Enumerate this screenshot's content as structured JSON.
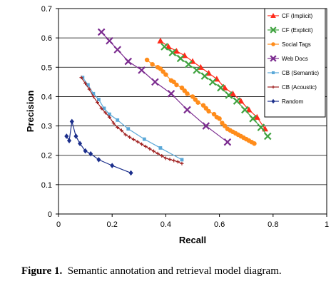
{
  "chart_data": {
    "type": "scatter",
    "xlabel": "Recall",
    "ylabel": "Precision",
    "xlim": [
      0,
      1
    ],
    "ylim": [
      0,
      0.7
    ],
    "x_ticks": [
      0,
      0.2,
      0.4,
      0.6,
      0.8,
      1
    ],
    "x_tick_labels": [
      "0",
      "0.2",
      "0.4",
      "0.6",
      "0.8",
      "1"
    ],
    "y_ticks": [
      0,
      0.1,
      0.2,
      0.3,
      0.4,
      0.5,
      0.6,
      0.7
    ],
    "y_tick_labels": [
      "0",
      "0.1",
      "0.2",
      "0.3",
      "0.4",
      "0.5",
      "0.6",
      "0.7"
    ],
    "grid": "horizontal",
    "legend_position": "top-right",
    "series": [
      {
        "name": "CF (Implicit)",
        "color": "#ff2a1a",
        "marker": "triangle",
        "x": [
          0.38,
          0.41,
          0.44,
          0.47,
          0.5,
          0.53,
          0.56,
          0.59,
          0.62,
          0.65,
          0.68,
          0.71,
          0.74,
          0.77
        ],
        "y": [
          0.59,
          0.57,
          0.555,
          0.54,
          0.52,
          0.5,
          0.48,
          0.46,
          0.43,
          0.41,
          0.385,
          0.355,
          0.33,
          0.29
        ]
      },
      {
        "name": "CF (Explicit)",
        "color": "#3fa23f",
        "marker": "x",
        "x": [
          0.395,
          0.425,
          0.455,
          0.485,
          0.515,
          0.545,
          0.575,
          0.605,
          0.635,
          0.665,
          0.695,
          0.725,
          0.755,
          0.78
        ],
        "y": [
          0.57,
          0.55,
          0.53,
          0.51,
          0.49,
          0.47,
          0.45,
          0.43,
          0.405,
          0.385,
          0.355,
          0.325,
          0.295,
          0.265
        ]
      },
      {
        "name": "Social Tags",
        "color": "#ff8c1a",
        "marker": "circle",
        "x": [
          0.33,
          0.35,
          0.37,
          0.38,
          0.39,
          0.4,
          0.42,
          0.43,
          0.44,
          0.46,
          0.47,
          0.48,
          0.5,
          0.51,
          0.52,
          0.54,
          0.55,
          0.56,
          0.58,
          0.59,
          0.6,
          0.61,
          0.62,
          0.63,
          0.64,
          0.65,
          0.66,
          0.67,
          0.68,
          0.69,
          0.7,
          0.71,
          0.72,
          0.73
        ],
        "y": [
          0.525,
          0.51,
          0.5,
          0.495,
          0.485,
          0.475,
          0.455,
          0.45,
          0.44,
          0.43,
          0.42,
          0.41,
          0.4,
          0.39,
          0.38,
          0.37,
          0.36,
          0.35,
          0.34,
          0.33,
          0.325,
          0.31,
          0.3,
          0.29,
          0.285,
          0.28,
          0.275,
          0.27,
          0.265,
          0.26,
          0.255,
          0.25,
          0.245,
          0.24
        ]
      },
      {
        "name": "Web Docs",
        "color": "#7b2b8f",
        "marker": "x",
        "x": [
          0.16,
          0.19,
          0.22,
          0.26,
          0.31,
          0.36,
          0.42,
          0.48,
          0.55,
          0.63
        ],
        "y": [
          0.62,
          0.59,
          0.56,
          0.52,
          0.49,
          0.45,
          0.41,
          0.355,
          0.3,
          0.245
        ]
      },
      {
        "name": "CB (Semantic)",
        "color": "#5aa8d8",
        "marker": "square",
        "x": [
          0.09,
          0.11,
          0.13,
          0.15,
          0.17,
          0.19,
          0.22,
          0.26,
          0.32,
          0.38,
          0.46
        ],
        "y": [
          0.465,
          0.44,
          0.41,
          0.39,
          0.36,
          0.34,
          0.32,
          0.29,
          0.255,
          0.225,
          0.185
        ]
      },
      {
        "name": "CB (Acoustic)",
        "color": "#a02020",
        "marker": "plus",
        "x": [
          0.085,
          0.1,
          0.115,
          0.13,
          0.145,
          0.16,
          0.175,
          0.19,
          0.205,
          0.22,
          0.235,
          0.25,
          0.265,
          0.28,
          0.295,
          0.31,
          0.325,
          0.34,
          0.355,
          0.37,
          0.385,
          0.4,
          0.415,
          0.43,
          0.445,
          0.46
        ],
        "y": [
          0.465,
          0.445,
          0.425,
          0.4,
          0.38,
          0.36,
          0.345,
          0.33,
          0.31,
          0.295,
          0.285,
          0.27,
          0.262,
          0.254,
          0.246,
          0.238,
          0.23,
          0.222,
          0.214,
          0.206,
          0.198,
          0.19,
          0.186,
          0.182,
          0.178,
          0.172
        ]
      },
      {
        "name": "Random",
        "color": "#1c2f8c",
        "marker": "diamond",
        "x": [
          0.03,
          0.04,
          0.05,
          0.065,
          0.08,
          0.1,
          0.12,
          0.15,
          0.2,
          0.27
        ],
        "y": [
          0.265,
          0.25,
          0.315,
          0.265,
          0.24,
          0.215,
          0.205,
          0.185,
          0.165,
          0.14
        ]
      }
    ]
  },
  "caption": {
    "label": "Figure 1.",
    "text": "Semantic annotation and retrieval model diagram."
  }
}
